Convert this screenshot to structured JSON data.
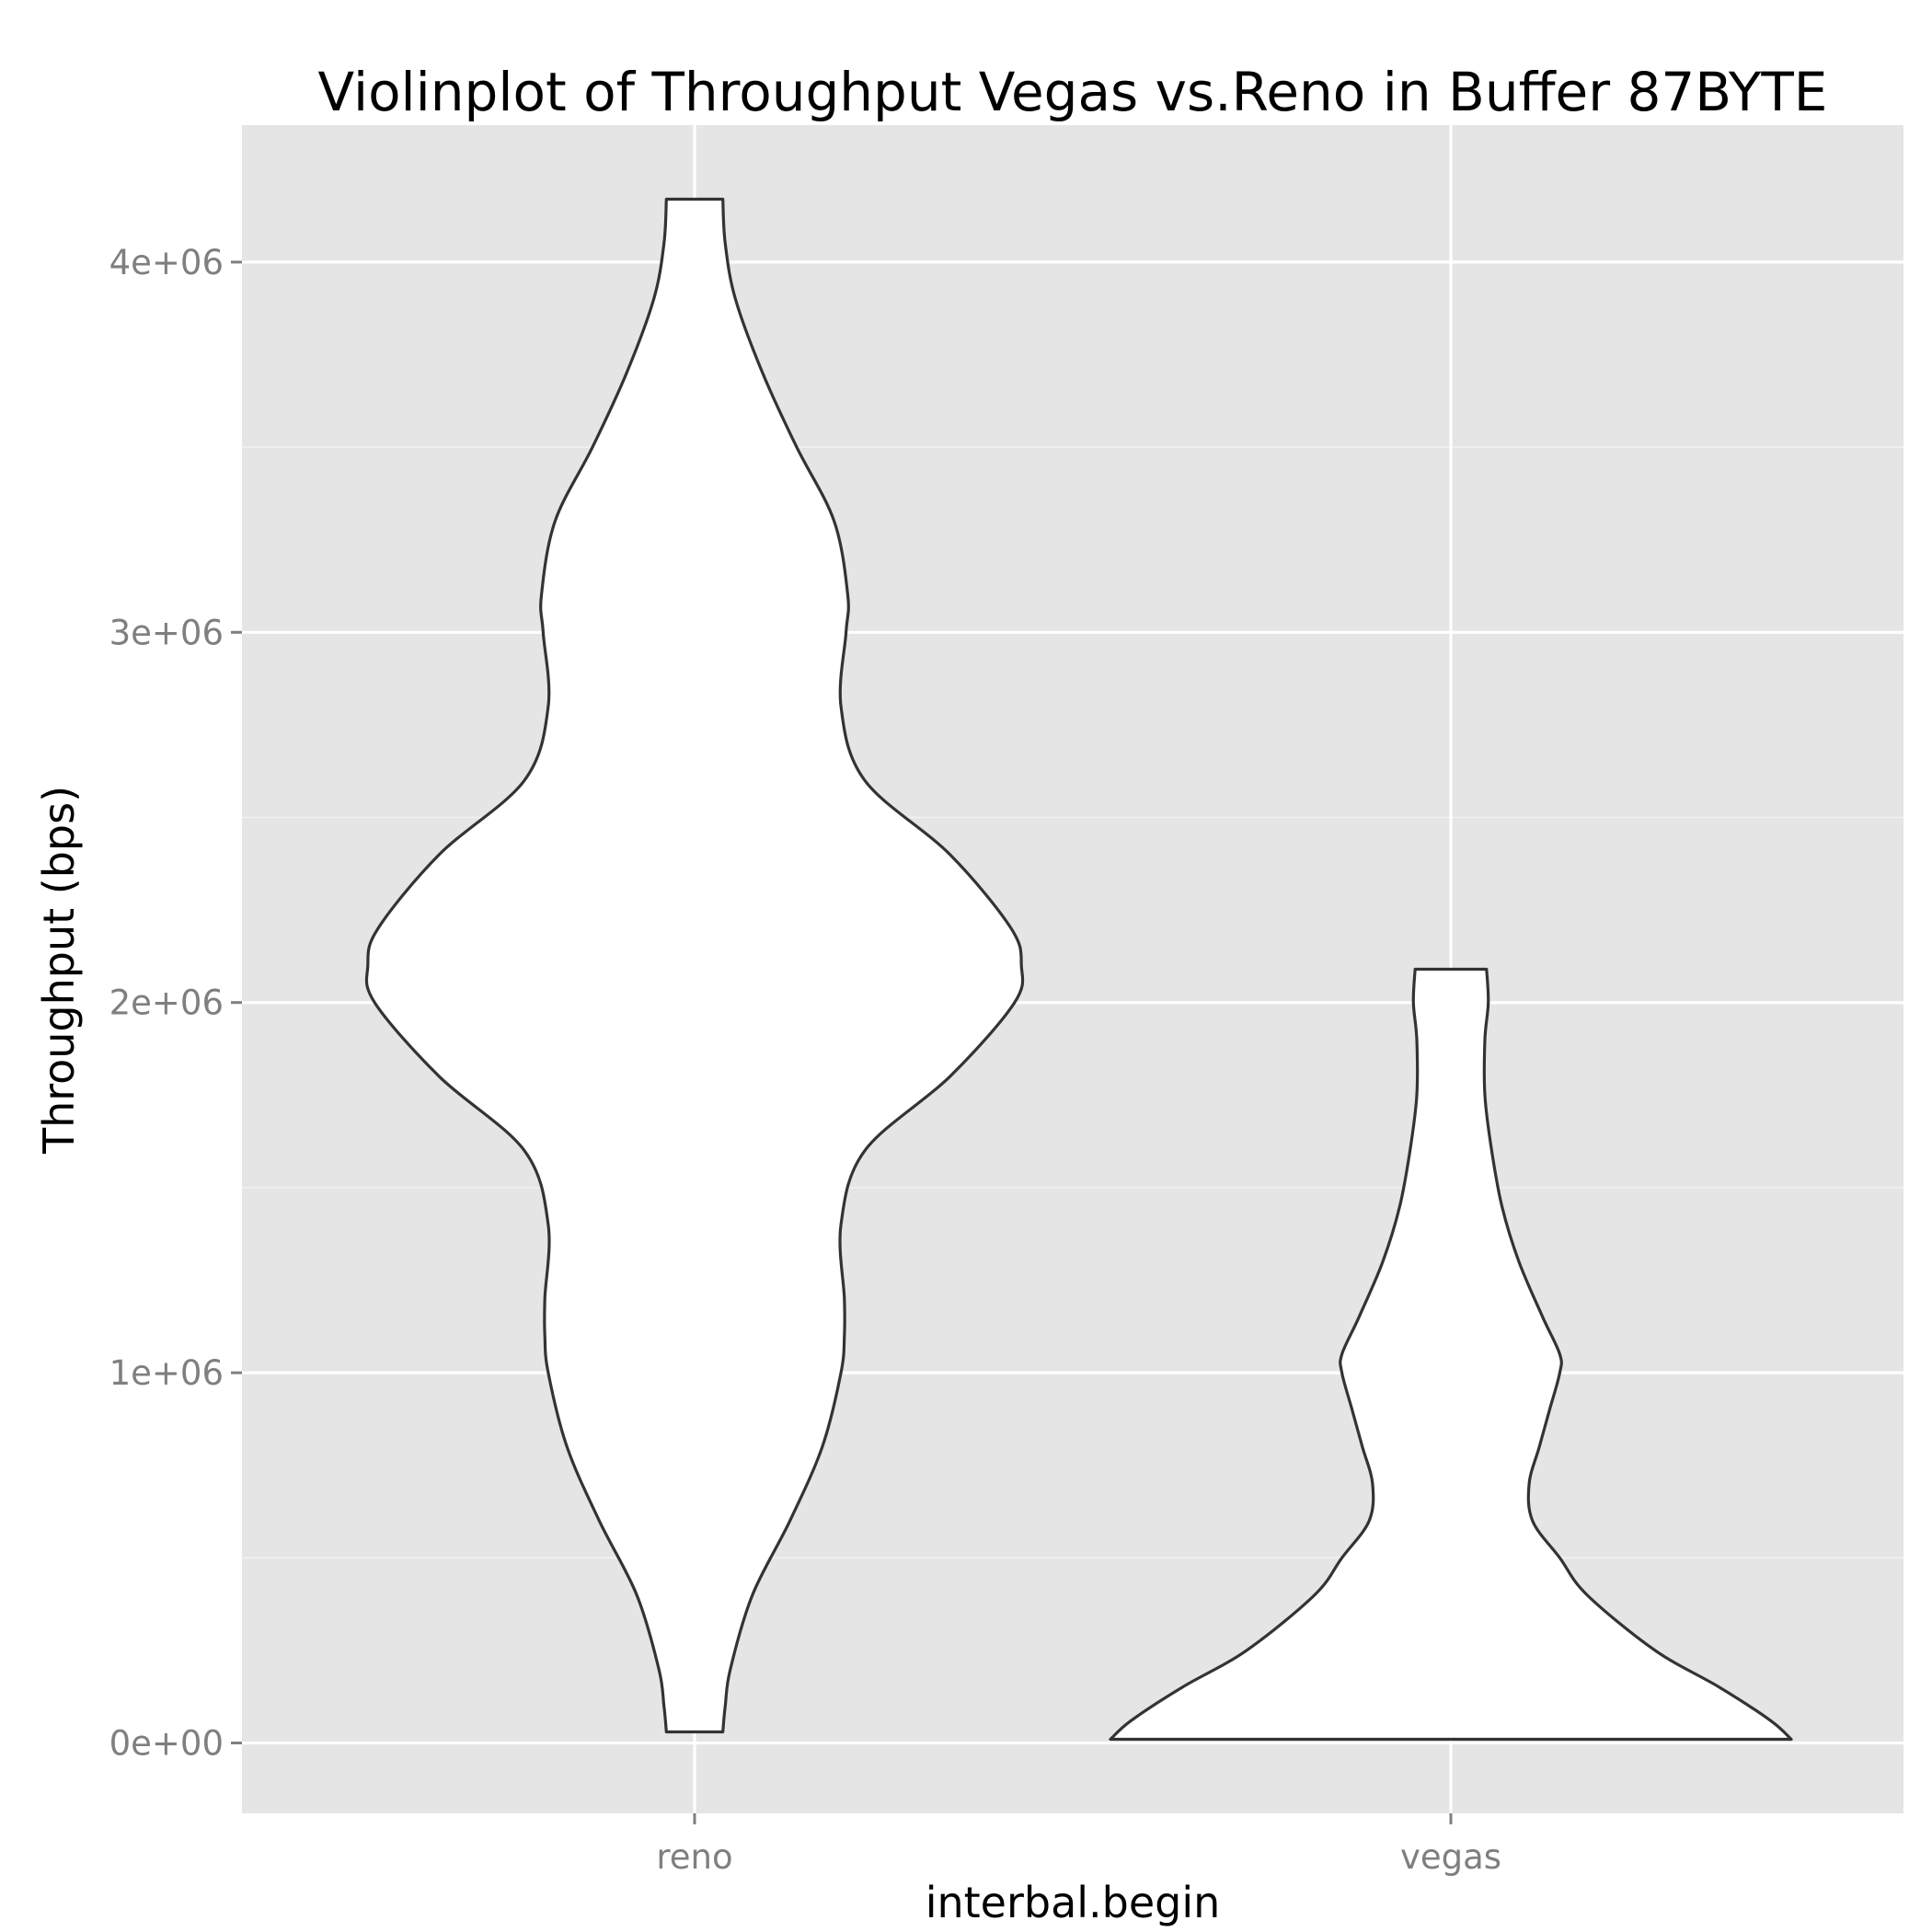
{
  "chart_data": {
    "type": "violin",
    "title": "Violinplot of Throughput Vegas vs.Reno in Buffer 87BYTE",
    "xlabel": "interbal.begin",
    "ylabel": "Throughput (bps)",
    "categories": [
      "reno",
      "vegas"
    ],
    "ylim": [
      -190000,
      4370000
    ],
    "y_ticks": [
      0,
      1000000,
      2000000,
      3000000,
      4000000
    ],
    "y_tick_labels": [
      "0e+00",
      "1e+06",
      "2e+06",
      "3e+06",
      "4e+06"
    ],
    "grid": true,
    "legend": "none",
    "colors": {
      "panel": "#e5e5e5",
      "grid": "#ffffff",
      "violin_fill": "#ffffff",
      "violin_outline": "#333333"
    },
    "series": [
      {
        "category": "reno",
        "min": 30000,
        "max": 4170000,
        "density_profile": {
          "y": [
            30000,
            100000,
            200000,
            400000,
            600000,
            800000,
            1000000,
            1100000,
            1200000,
            1400000,
            1600000,
            1800000,
            2000000,
            2100000,
            2200000,
            2400000,
            2600000,
            2800000,
            3000000,
            3100000,
            3300000,
            3500000,
            3700000,
            3900000,
            4050000,
            4170000
          ],
          "width": [
            0.083,
            0.09,
            0.105,
            0.17,
            0.28,
            0.375,
            0.43,
            0.44,
            0.44,
            0.43,
            0.5,
            0.75,
            0.94,
            0.96,
            0.93,
            0.75,
            0.5,
            0.43,
            0.445,
            0.45,
            0.41,
            0.3,
            0.2,
            0.12,
            0.09,
            0.083
          ]
        }
      },
      {
        "category": "vegas",
        "min": 10000,
        "max": 2090000,
        "density_profile": {
          "y": [
            10000,
            60000,
            150000,
            250000,
            400000,
            500000,
            600000,
            700000,
            800000,
            900000,
            1000000,
            1050000,
            1150000,
            1300000,
            1450000,
            1600000,
            1750000,
            1900000,
            2000000,
            2090000
          ],
          "width": [
            1.0,
            0.94,
            0.79,
            0.6,
            0.4,
            0.32,
            0.24,
            0.23,
            0.26,
            0.29,
            0.32,
            0.32,
            0.27,
            0.2,
            0.15,
            0.12,
            0.1,
            0.1,
            0.11,
            0.105
          ]
        }
      }
    ]
  }
}
